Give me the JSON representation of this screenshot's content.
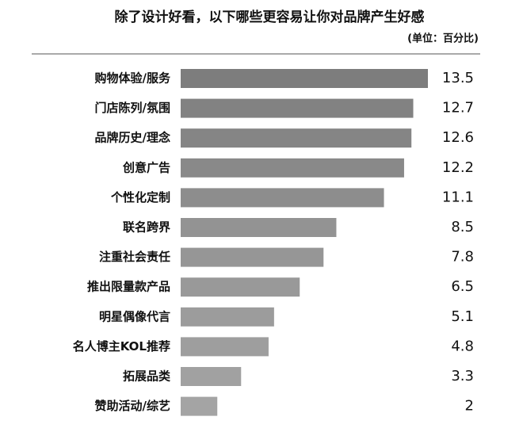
{
  "chart_data": {
    "type": "hbar",
    "title": "除了设计好看，以下哪些更容易让你对品牌产生好感",
    "subtitle": "(单位：百分比)",
    "categories": [
      "购物体验/服务",
      "门店陈列/氛围",
      "品牌历史/理念",
      "创意广告",
      "个性化定制",
      "联名跨界",
      "注重社会责任",
      "推出限量款产品",
      "明星偶像代言",
      "名人博主KOL推荐",
      "拓展品类",
      "赞助活动/综艺"
    ],
    "values": [
      13.5,
      12.7,
      12.6,
      12.2,
      11.1,
      8.5,
      7.8,
      6.5,
      5.1,
      4.8,
      3.3,
      2
    ],
    "colors": [
      "#7d7d7d",
      "#828282",
      "#858585",
      "#898989",
      "#8d8d8d",
      "#939393",
      "#969696",
      "#999999",
      "#9c9c9c",
      "#9e9e9e",
      "#a1a1a1",
      "#a4a4a4"
    ]
  }
}
